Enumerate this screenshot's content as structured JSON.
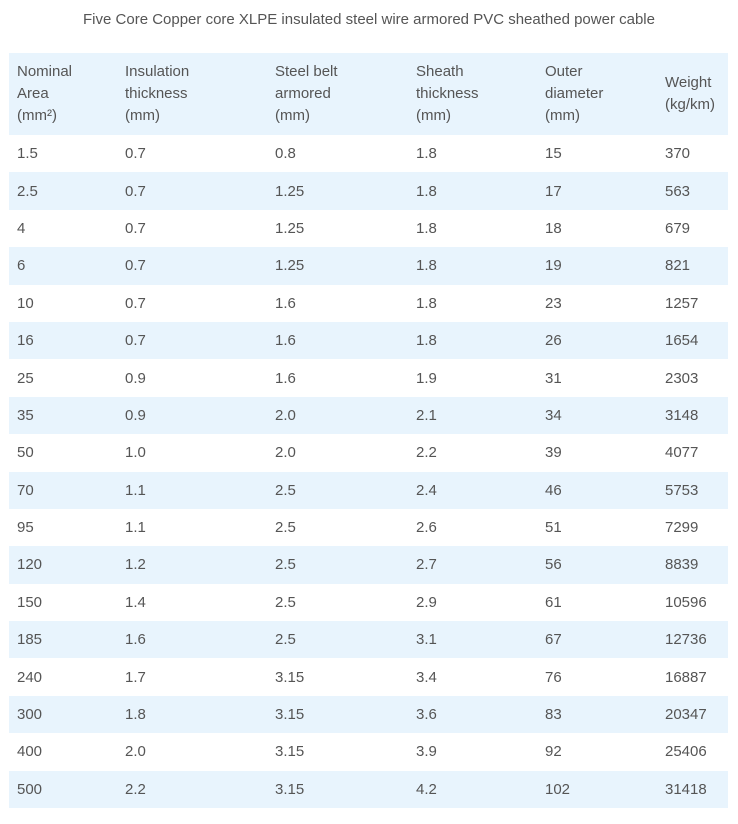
{
  "title": "Five Core Copper core XLPE insulated steel wire armored PVC sheathed power cable",
  "headers": [
    [
      "Nominal",
      "Area",
      "(mm²)"
    ],
    [
      "Insulation",
      "thickness",
      "(mm)"
    ],
    [
      "Steel belt",
      "armored",
      "(mm)"
    ],
    [
      "Sheath",
      "thickness",
      "(mm)"
    ],
    [
      "Outer",
      "diameter",
      "(mm)"
    ],
    [
      "Weight",
      "(kg/km)"
    ]
  ],
  "rows": [
    [
      "1.5",
      "0.7",
      "0.8",
      "1.8",
      "15",
      "370"
    ],
    [
      "2.5",
      "0.7",
      "1.25",
      "1.8",
      "17",
      "563"
    ],
    [
      "4",
      "0.7",
      "1.25",
      "1.8",
      "18",
      "679"
    ],
    [
      "6",
      "0.7",
      "1.25",
      "1.8",
      "19",
      "821"
    ],
    [
      "10",
      "0.7",
      "1.6",
      "1.8",
      "23",
      "1257"
    ],
    [
      "16",
      "0.7",
      "1.6",
      "1.8",
      "26",
      "1654"
    ],
    [
      "25",
      "0.9",
      "1.6",
      "1.9",
      "31",
      "2303"
    ],
    [
      "35",
      "0.9",
      "2.0",
      "2.1",
      "34",
      "3148"
    ],
    [
      "50",
      "1.0",
      "2.0",
      "2.2",
      "39",
      "4077"
    ],
    [
      "70",
      "1.1",
      "2.5",
      "2.4",
      "46",
      "5753"
    ],
    [
      "95",
      "1.1",
      "2.5",
      "2.6",
      "51",
      "7299"
    ],
    [
      "120",
      "1.2",
      "2.5",
      "2.7",
      "56",
      "8839"
    ],
    [
      "150",
      "1.4",
      "2.5",
      "2.9",
      "61",
      "10596"
    ],
    [
      "185",
      "1.6",
      "2.5",
      "3.1",
      "67",
      "12736"
    ],
    [
      "240",
      "1.7",
      "3.15",
      "3.4",
      "76",
      "16887"
    ],
    [
      "300",
      "1.8",
      "3.15",
      "3.6",
      "83",
      "20347"
    ],
    [
      "400",
      "2.0",
      "3.15",
      "3.9",
      "92",
      "25406"
    ],
    [
      "500",
      "2.2",
      "3.15",
      "4.2",
      "102",
      "31418"
    ]
  ]
}
